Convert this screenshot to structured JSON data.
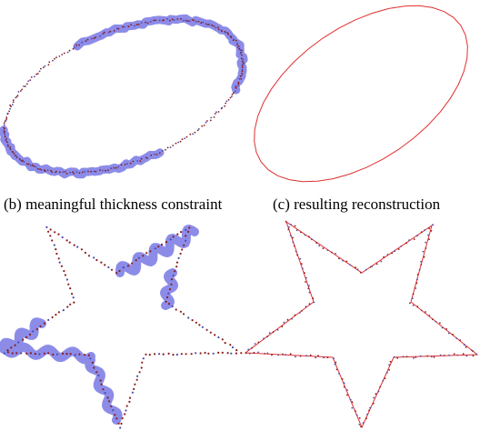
{
  "figure": {
    "captions": {
      "b": "(b) meaningful thickness constraint",
      "c": "(c) resulting reconstruction"
    },
    "colors": {
      "background": "#ffffff",
      "sample_points": "#8b1a1a",
      "sample_points_alt": "#4a4ab0",
      "thickness_band": "#8c8ce8",
      "reconstruction_curve": "#e03030"
    },
    "panels": [
      {
        "id": "ellipse-thickness",
        "shape": "ellipse",
        "description_shown": "noisy point samples with thickness bands"
      },
      {
        "id": "ellipse-reconstruction",
        "shape": "ellipse",
        "description_shown": "reconstructed curve"
      },
      {
        "id": "star-thickness",
        "shape": "star",
        "description_shown": "noisy point samples with thickness bands"
      },
      {
        "id": "star-reconstruction",
        "shape": "star",
        "description_shown": "reconstructed curve with points"
      }
    ]
  }
}
